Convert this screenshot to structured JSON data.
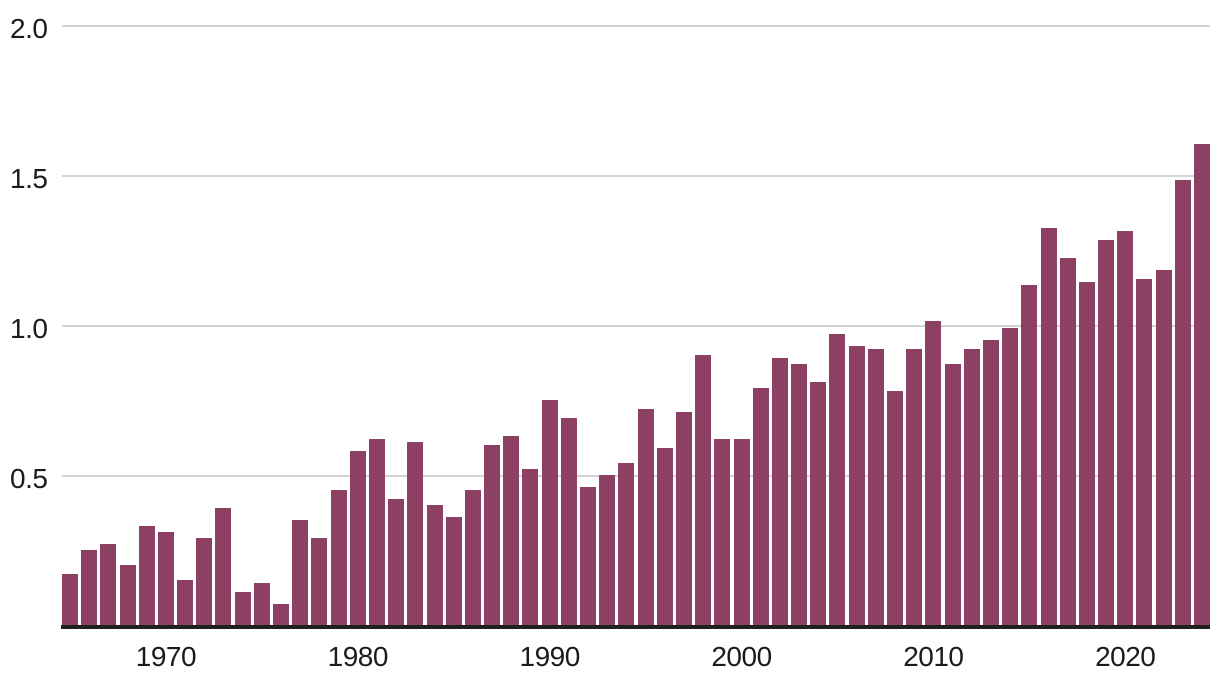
{
  "chart_data": {
    "type": "bar",
    "x": [
      1965,
      1966,
      1967,
      1968,
      1969,
      1970,
      1971,
      1972,
      1973,
      1974,
      1975,
      1976,
      1977,
      1978,
      1979,
      1980,
      1981,
      1982,
      1983,
      1984,
      1985,
      1986,
      1987,
      1988,
      1989,
      1990,
      1991,
      1992,
      1993,
      1994,
      1995,
      1996,
      1997,
      1998,
      1999,
      2000,
      2001,
      2002,
      2003,
      2004,
      2005,
      2006,
      2007,
      2008,
      2009,
      2010,
      2011,
      2012,
      2013,
      2014,
      2015,
      2016,
      2017,
      2018,
      2019,
      2020,
      2021,
      2022,
      2023,
      2024
    ],
    "values": [
      0.17,
      0.25,
      0.27,
      0.2,
      0.33,
      0.31,
      0.15,
      0.29,
      0.39,
      0.11,
      0.14,
      0.07,
      0.35,
      0.29,
      0.45,
      0.58,
      0.62,
      0.42,
      0.61,
      0.4,
      0.36,
      0.45,
      0.6,
      0.63,
      0.52,
      0.75,
      0.69,
      0.46,
      0.5,
      0.54,
      0.72,
      0.59,
      0.71,
      0.9,
      0.62,
      0.62,
      0.79,
      0.89,
      0.87,
      0.81,
      0.97,
      0.93,
      0.92,
      0.78,
      0.92,
      1.01,
      0.87,
      0.92,
      0.95,
      0.99,
      1.13,
      1.32,
      1.22,
      1.14,
      1.28,
      1.31,
      1.15,
      1.18,
      1.48,
      1.6
    ],
    "ylim": [
      0,
      2.0
    ],
    "yticks": [
      0.5,
      1.0,
      1.5,
      2.0
    ],
    "ytick_labels": [
      "0.5",
      "1.0",
      "1.5",
      "2.0"
    ],
    "xticks": [
      1970,
      1980,
      1990,
      2000,
      2010,
      2020
    ],
    "xtick_labels": [
      "1970",
      "1980",
      "1990",
      "2000",
      "2010",
      "2020"
    ],
    "grid": "horizontal",
    "legend": "none",
    "colors": {
      "bar": "#8c4164",
      "gridline": "#d3d3d3",
      "axis_line": "#202020",
      "tick_text": "#1b1b1b",
      "background": "#ffffff"
    }
  }
}
